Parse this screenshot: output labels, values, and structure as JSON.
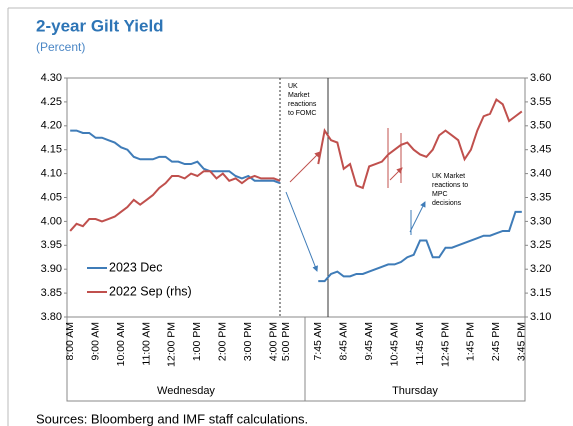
{
  "chart_data": {
    "type": "line",
    "title": "2-year Gilt Yield",
    "subtitle": "(Percent)",
    "categories": [
      "8:00 AM",
      null,
      null,
      null,
      "9:00 AM",
      null,
      null,
      null,
      "10:00 AM",
      null,
      null,
      null,
      "11:00 AM",
      null,
      null,
      null,
      "12:00 PM",
      null,
      null,
      null,
      "1:00 PM",
      null,
      null,
      null,
      "2:00 PM",
      null,
      null,
      null,
      "3:00 PM",
      null,
      null,
      null,
      "4:00 PM",
      null,
      "5:00 PM",
      null,
      null,
      null,
      null,
      "7:45 AM",
      null,
      null,
      null,
      "8:45 AM",
      null,
      null,
      null,
      "9:45 AM",
      null,
      null,
      null,
      "10:45 AM",
      null,
      null,
      null,
      "11:45 AM",
      null,
      null,
      null,
      "12:45 PM",
      null,
      null,
      null,
      "1:45 PM",
      null,
      null,
      null,
      "2:45 PM",
      null,
      null,
      null,
      "3:45 PM"
    ],
    "group_labels": [
      "Wednesday",
      "Thursday"
    ],
    "series": [
      {
        "name": "2023 Dec",
        "color": "#3f7cb8",
        "values": [
          4.19,
          4.19,
          4.185,
          4.185,
          4.175,
          4.175,
          4.17,
          4.165,
          4.155,
          4.15,
          4.135,
          4.13,
          4.13,
          4.13,
          4.135,
          4.135,
          4.125,
          4.125,
          4.12,
          4.12,
          4.125,
          4.11,
          4.105,
          4.105,
          4.105,
          4.105,
          4.095,
          4.09,
          4.095,
          4.085,
          4.085,
          4.085,
          4.085,
          4.08,
          null,
          null,
          null,
          null,
          null,
          3.875,
          3.875,
          3.89,
          3.895,
          3.885,
          3.885,
          3.89,
          3.89,
          3.895,
          3.9,
          3.905,
          3.91,
          3.91,
          3.915,
          3.925,
          3.93,
          3.96,
          3.96,
          3.925,
          3.925,
          3.945,
          3.945,
          3.95,
          3.955,
          3.96,
          3.965,
          3.97,
          3.97,
          3.975,
          3.98,
          3.98,
          4.02,
          4.02
        ]
      },
      {
        "name": "2022 Sep (rhs)",
        "color": "#c0504d",
        "axis": "y2",
        "values": [
          3.28,
          3.295,
          3.29,
          3.305,
          3.305,
          3.3,
          3.305,
          3.31,
          3.32,
          3.33,
          3.345,
          3.335,
          3.345,
          3.355,
          3.37,
          3.38,
          3.395,
          3.395,
          3.39,
          3.4,
          3.395,
          3.405,
          3.405,
          3.39,
          3.4,
          3.385,
          3.39,
          3.38,
          3.39,
          3.395,
          3.39,
          3.39,
          3.39,
          3.385,
          null,
          null,
          null,
          null,
          null,
          3.42,
          3.49,
          3.47,
          3.465,
          3.41,
          3.42,
          3.375,
          3.37,
          3.415,
          3.42,
          3.425,
          3.44,
          3.45,
          3.46,
          3.465,
          3.45,
          3.44,
          3.435,
          3.45,
          3.48,
          3.49,
          3.48,
          3.47,
          3.43,
          3.45,
          3.49,
          3.52,
          3.525,
          3.555,
          3.545,
          3.51,
          3.52,
          3.53
        ]
      }
    ],
    "ylim": [
      3.8,
      4.3
    ],
    "yticks": [
      {
        "value": 3.8,
        "label": "3.80"
      },
      {
        "value": 3.85,
        "label": "3.85"
      },
      {
        "value": 3.9,
        "label": "3.90"
      },
      {
        "value": 3.95,
        "label": "3.95"
      },
      {
        "value": 4.0,
        "label": "4.00"
      },
      {
        "value": 4.05,
        "label": "4.05"
      },
      {
        "value": 4.1,
        "label": "4.10"
      },
      {
        "value": 4.15,
        "label": "4.15"
      },
      {
        "value": 4.2,
        "label": "4.20"
      },
      {
        "value": 4.25,
        "label": "4.25"
      },
      {
        "value": 4.3,
        "label": "4.30"
      }
    ],
    "y2lim": [
      3.1,
      3.6
    ],
    "y2ticks": [
      {
        "value": 3.1,
        "label": "3.10"
      },
      {
        "value": 3.15,
        "label": "3.15"
      },
      {
        "value": 3.2,
        "label": "3.20"
      },
      {
        "value": 3.25,
        "label": "3.25"
      },
      {
        "value": 3.3,
        "label": "3.30"
      },
      {
        "value": 3.35,
        "label": "3.35"
      },
      {
        "value": 3.4,
        "label": "3.40"
      },
      {
        "value": 3.45,
        "label": "3.45"
      },
      {
        "value": 3.5,
        "label": "3.50"
      },
      {
        "value": 3.55,
        "label": "3.55"
      },
      {
        "value": 3.6,
        "label": "3.60"
      }
    ],
    "annotations": [
      {
        "lines": [
          "UK",
          "Market",
          "reactions",
          "to FOMC"
        ]
      },
      {
        "lines": [
          "UK Market",
          "reactions to",
          "MPC",
          "decisions"
        ]
      }
    ],
    "source": "Sources: Bloomberg and IMF staff calculations."
  }
}
